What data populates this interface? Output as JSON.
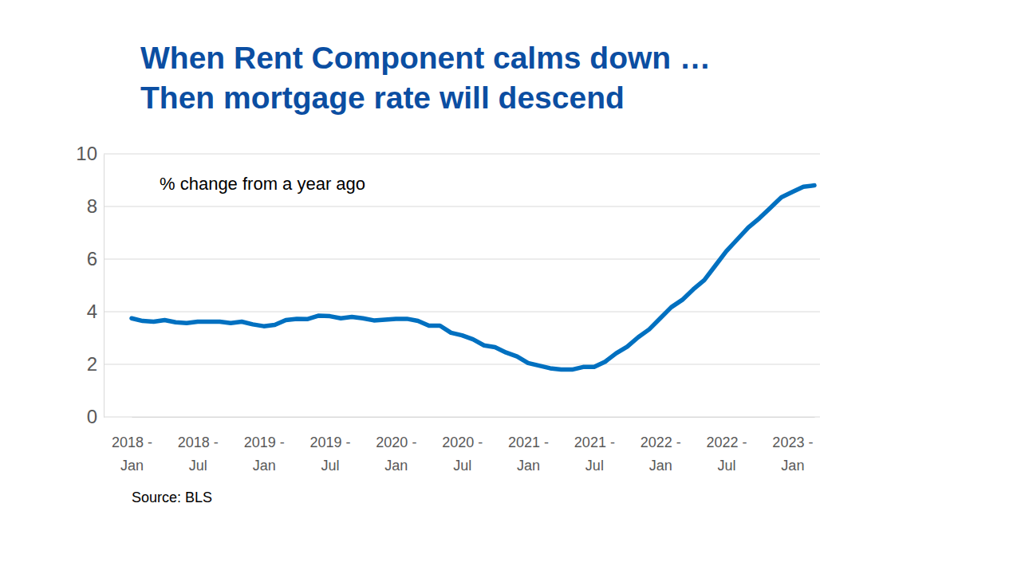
{
  "chart_data": {
    "type": "line",
    "title": "When Rent Component calms down …\nThen mortgage rate will descend",
    "annotation": "% change from a year ago",
    "source": "Source: BLS",
    "categories": [
      "2018 - Jan",
      null,
      null,
      null,
      null,
      null,
      "2018 - Jul",
      null,
      null,
      null,
      null,
      null,
      "2019 - Jan",
      null,
      null,
      null,
      null,
      null,
      "2019 - Jul",
      null,
      null,
      null,
      null,
      null,
      "2020 - Jan",
      null,
      null,
      null,
      null,
      null,
      "2020 - Jul",
      null,
      null,
      null,
      null,
      null,
      "2021 - Jan",
      null,
      null,
      null,
      null,
      null,
      "2021 - Jul",
      null,
      null,
      null,
      null,
      null,
      "2022 - Jan",
      null,
      null,
      null,
      null,
      null,
      "2022 - Jul",
      null,
      null,
      null,
      null,
      null,
      "2023 - Jan",
      null,
      null
    ],
    "values": [
      3.75,
      3.65,
      3.62,
      3.68,
      3.6,
      3.57,
      3.62,
      3.62,
      3.62,
      3.57,
      3.62,
      3.52,
      3.45,
      3.5,
      3.68,
      3.73,
      3.72,
      3.85,
      3.83,
      3.75,
      3.8,
      3.75,
      3.67,
      3.7,
      3.73,
      3.73,
      3.65,
      3.47,
      3.47,
      3.2,
      3.1,
      2.95,
      2.72,
      2.65,
      2.45,
      2.3,
      2.05,
      1.95,
      1.85,
      1.8,
      1.8,
      1.9,
      1.9,
      2.1,
      2.42,
      2.67,
      3.03,
      3.33,
      3.75,
      4.17,
      4.45,
      4.85,
      5.2,
      5.75,
      6.3,
      6.75,
      7.2,
      7.55,
      7.95,
      8.35,
      8.55,
      8.75,
      8.8
    ],
    "color": "#0070c0",
    "ylim": [
      0,
      10
    ],
    "yticks": [
      0,
      2,
      4,
      6,
      8,
      10
    ],
    "grid": true
  }
}
